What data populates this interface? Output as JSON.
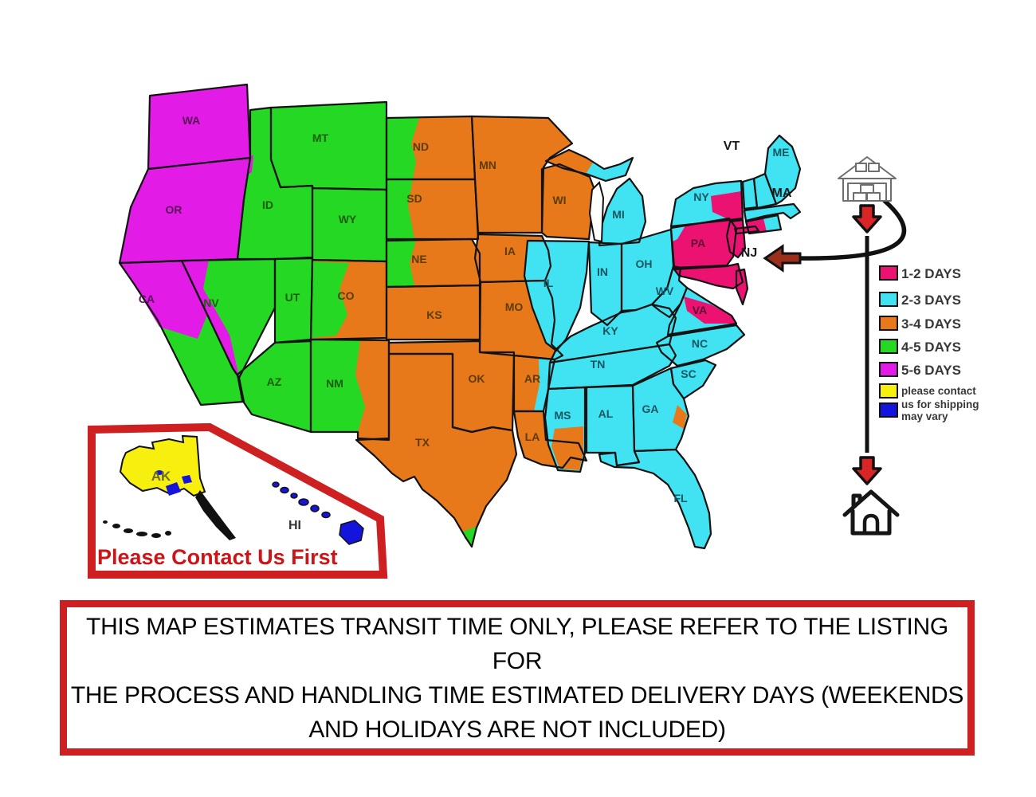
{
  "zones": {
    "1-2": "#EC1271",
    "2-3": "#41E3F2",
    "3-4": "#E8791A",
    "4-5": "#24D824",
    "5-6": "#E21BE6",
    "contact": "#F7EF0E",
    "vary": "#1414DC"
  },
  "accent_red": "#CE2021",
  "legend": {
    "items": [
      {
        "zone": "1-2",
        "lines": [
          "1-2 DAYS"
        ]
      },
      {
        "zone": "2-3",
        "lines": [
          "2-3 DAYS"
        ]
      },
      {
        "zone": "3-4",
        "lines": [
          "3-4 DAYS"
        ]
      },
      {
        "zone": "4-5",
        "lines": [
          "4-5 DAYS"
        ]
      },
      {
        "zone": "5-6",
        "lines": [
          "5-6 DAYS"
        ]
      },
      {
        "zone": "contact",
        "lines": [
          "please contact",
          "us for shipping"
        ]
      },
      {
        "zone": "vary",
        "lines": [
          "may vary"
        ]
      }
    ]
  },
  "map": {
    "states": [
      {
        "id": "WA",
        "label": "WA",
        "zone": "5-6"
      },
      {
        "id": "OR",
        "label": "OR",
        "zone": "5-6"
      },
      {
        "id": "CA",
        "label": "CA",
        "zone": "4-5"
      },
      {
        "id": "NV",
        "label": "NV",
        "zone": "4-5"
      },
      {
        "id": "ID",
        "label": "ID",
        "zone": "4-5"
      },
      {
        "id": "MT",
        "label": "MT",
        "zone": "4-5"
      },
      {
        "id": "WY",
        "label": "WY",
        "zone": "4-5"
      },
      {
        "id": "UT",
        "label": "UT",
        "zone": "4-5"
      },
      {
        "id": "CO",
        "label": "CO",
        "zone": "3-4"
      },
      {
        "id": "AZ",
        "label": "AZ",
        "zone": "4-5"
      },
      {
        "id": "NM",
        "label": "NM",
        "zone": "4-5"
      },
      {
        "id": "ND",
        "label": "ND",
        "zone": "3-4"
      },
      {
        "id": "SD",
        "label": "SD",
        "zone": "3-4"
      },
      {
        "id": "NE",
        "label": "NE",
        "zone": "3-4"
      },
      {
        "id": "KS",
        "label": "KS",
        "zone": "3-4"
      },
      {
        "id": "OK",
        "label": "OK",
        "zone": "3-4"
      },
      {
        "id": "TX",
        "label": "TX",
        "zone": "3-4"
      },
      {
        "id": "MN",
        "label": "MN",
        "zone": "3-4"
      },
      {
        "id": "IA",
        "label": "IA",
        "zone": "3-4"
      },
      {
        "id": "MO",
        "label": "MO",
        "zone": "3-4"
      },
      {
        "id": "AR",
        "label": "AR",
        "zone": "3-4"
      },
      {
        "id": "LA",
        "label": "LA",
        "zone": "3-4"
      },
      {
        "id": "WI",
        "label": "WI",
        "zone": "3-4"
      },
      {
        "id": "MI",
        "label": "MI",
        "zone": "2-3"
      },
      {
        "id": "IL",
        "label": "IL",
        "zone": "2-3"
      },
      {
        "id": "IN",
        "label": "IN",
        "zone": "2-3"
      },
      {
        "id": "OH",
        "label": "OH",
        "zone": "2-3"
      },
      {
        "id": "KY",
        "label": "KY",
        "zone": "2-3"
      },
      {
        "id": "TN",
        "label": "TN",
        "zone": "2-3"
      },
      {
        "id": "MS",
        "label": "MS",
        "zone": "2-3"
      },
      {
        "id": "AL",
        "label": "AL",
        "zone": "2-3"
      },
      {
        "id": "GA",
        "label": "GA",
        "zone": "2-3"
      },
      {
        "id": "FL",
        "label": "FL",
        "zone": "2-3"
      },
      {
        "id": "WV",
        "label": "WV",
        "zone": "2-3"
      },
      {
        "id": "VA",
        "label": "VA",
        "zone": "2-3"
      },
      {
        "id": "NC",
        "label": "NC",
        "zone": "2-3"
      },
      {
        "id": "SC",
        "label": "SC",
        "zone": "2-3"
      },
      {
        "id": "PA",
        "label": "PA",
        "zone": "1-2"
      },
      {
        "id": "NY",
        "label": "NY",
        "zone": "2-3"
      },
      {
        "id": "NJ",
        "label": "NJ",
        "zone": "1-2"
      },
      {
        "id": "MD",
        "label": "",
        "zone": "1-2"
      },
      {
        "id": "DM",
        "label": "",
        "zone": "1-2"
      },
      {
        "id": "VT",
        "label": "VT",
        "zone": "2-3"
      },
      {
        "id": "NH",
        "label": "",
        "zone": "2-3"
      },
      {
        "id": "ME",
        "label": "ME",
        "zone": "2-3"
      },
      {
        "id": "MA",
        "label": "MA",
        "zone": "2-3"
      },
      {
        "id": "CT",
        "label": "",
        "zone": "2-3"
      },
      {
        "id": "LI",
        "label": "",
        "zone": "1-2"
      }
    ],
    "splits": [
      {
        "state": "CA",
        "zone": "5-6"
      },
      {
        "state": "NV",
        "zone": "5-6"
      },
      {
        "state": "ID",
        "zone": "5-6"
      },
      {
        "state": "CO",
        "zone": "4-5"
      },
      {
        "state": "NM",
        "zone": "3-4"
      },
      {
        "state": "ND",
        "zone": "4-5"
      },
      {
        "state": "SD",
        "zone": "4-5"
      },
      {
        "state": "NE",
        "zone": "4-5"
      },
      {
        "state": "TX",
        "zone": "4-5"
      },
      {
        "state": "AR",
        "zone": "2-3"
      },
      {
        "state": "MS",
        "zone": "3-4"
      },
      {
        "state": "GA",
        "zone": "3-4"
      },
      {
        "state": "MI",
        "zone": "3-4"
      },
      {
        "state": "VA",
        "zone": "1-2"
      },
      {
        "state": "PA",
        "zone": "2-3"
      },
      {
        "state": "NY",
        "zone": "1-2"
      },
      {
        "state": "CT",
        "zone": "1-2"
      }
    ]
  },
  "inset": {
    "title": "Please Contact Us First",
    "ak_label": "AK",
    "hi_label": "HI"
  },
  "disclaimer": {
    "lines": [
      "THIS MAP ESTIMATES TRANSIT TIME ONLY, PLEASE REFER TO THE LISTING FOR",
      "THE PROCESS AND HANDLING TIME ESTIMATED DELIVERY DAYS (WEEKENDS",
      "AND HOLIDAYS ARE NOT INCLUDED)"
    ]
  }
}
